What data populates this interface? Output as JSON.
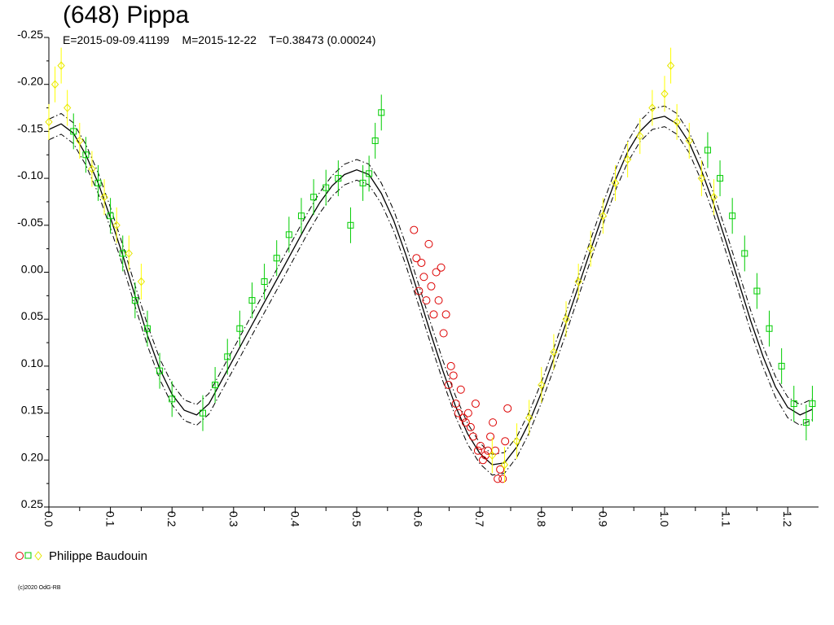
{
  "title": "(648) Pippa",
  "subtitle": "E=2015-09-09.41199    M=2015-12-22    T=0.38473 (0.00024)",
  "legend": {
    "observer": "Philippe Baudouin"
  },
  "copyright": "(c)2020 OdG-RB",
  "colors": {
    "red": "#dd0000",
    "green": "#00cc00",
    "yellow": "#ffff00",
    "axis": "#000000"
  },
  "chart_data": {
    "type": "scatter",
    "title": "(648) Pippa",
    "xlim": [
      0.0,
      1.25
    ],
    "ylim": [
      -0.25,
      0.25
    ],
    "y_inverted": true,
    "grid": false,
    "x_ticks": [
      "0.0",
      "0.1",
      "0.2",
      "0.3",
      "0.4",
      "0.5",
      "0.6",
      "0.7",
      "0.8",
      "0.9",
      "1.0",
      "1.1",
      "1.2"
    ],
    "y_ticks": [
      "-0.25",
      "-0.20",
      "-0.15",
      "-0.10",
      "-0.05",
      "0.00",
      "0.05",
      "0.10",
      "0.15",
      "0.20",
      "0.25"
    ],
    "fit_curve": {
      "x": [
        0.0,
        0.02,
        0.04,
        0.06,
        0.08,
        0.1,
        0.12,
        0.14,
        0.16,
        0.18,
        0.2,
        0.22,
        0.24,
        0.26,
        0.28,
        0.3,
        0.32,
        0.34,
        0.36,
        0.38,
        0.4,
        0.42,
        0.44,
        0.46,
        0.48,
        0.5,
        0.52,
        0.54,
        0.56,
        0.58,
        0.6,
        0.62,
        0.64,
        0.66,
        0.68,
        0.7,
        0.72,
        0.74,
        0.76,
        0.78,
        0.8,
        0.82,
        0.84,
        0.86,
        0.88,
        0.9,
        0.92,
        0.94,
        0.96,
        0.98,
        1.0,
        1.02,
        1.04,
        1.06,
        1.08,
        1.1,
        1.12,
        1.14,
        1.16,
        1.18,
        1.2,
        1.22,
        1.24
      ],
      "y": [
        -0.152,
        -0.158,
        -0.148,
        -0.125,
        -0.095,
        -0.058,
        -0.018,
        0.025,
        0.067,
        0.103,
        0.13,
        0.147,
        0.152,
        0.14,
        0.116,
        0.092,
        0.068,
        0.044,
        0.02,
        -0.004,
        -0.028,
        -0.052,
        -0.074,
        -0.092,
        -0.104,
        -0.109,
        -0.104,
        -0.084,
        -0.055,
        -0.018,
        0.023,
        0.065,
        0.105,
        0.142,
        0.172,
        0.193,
        0.205,
        0.203,
        0.186,
        0.16,
        0.128,
        0.092,
        0.054,
        0.015,
        -0.024,
        -0.062,
        -0.098,
        -0.128,
        -0.15,
        -0.163,
        -0.166,
        -0.158,
        -0.138,
        -0.108,
        -0.072,
        -0.032,
        0.01,
        0.052,
        0.09,
        0.122,
        0.144,
        0.152,
        0.146
      ],
      "band": 0.011
    },
    "series": [
      {
        "name": "Philippe Baudouin",
        "marker": "circle",
        "color": "red",
        "x": [
          0.593,
          0.597,
          0.601,
          0.605,
          0.609,
          0.613,
          0.617,
          0.621,
          0.625,
          0.629,
          0.633,
          0.637,
          0.641,
          0.645,
          0.649,
          0.653,
          0.657,
          0.661,
          0.665,
          0.669,
          0.673,
          0.677,
          0.681,
          0.685,
          0.689,
          0.693,
          0.697,
          0.701,
          0.705,
          0.709,
          0.713,
          0.717,
          0.721,
          0.725,
          0.729,
          0.733,
          0.737,
          0.741,
          0.745
        ],
        "y": [
          -0.045,
          -0.015,
          0.02,
          -0.01,
          0.005,
          0.03,
          -0.03,
          0.015,
          0.045,
          0.0,
          0.03,
          -0.005,
          0.065,
          0.045,
          0.12,
          0.1,
          0.11,
          0.14,
          0.15,
          0.125,
          0.155,
          0.16,
          0.15,
          0.165,
          0.175,
          0.14,
          0.19,
          0.185,
          0.2,
          0.195,
          0.19,
          0.175,
          0.16,
          0.19,
          0.22,
          0.21,
          0.22,
          0.18,
          0.145
        ]
      },
      {
        "name": "Philippe Baudouin",
        "marker": "square",
        "color": "green",
        "x": [
          0.04,
          0.06,
          0.08,
          0.1,
          0.12,
          0.14,
          0.16,
          0.18,
          0.2,
          0.25,
          0.27,
          0.29,
          0.31,
          0.33,
          0.35,
          0.37,
          0.39,
          0.41,
          0.43,
          0.45,
          0.47,
          0.49,
          0.51,
          0.52,
          0.53,
          0.54,
          1.07,
          1.09,
          1.11,
          1.13,
          1.15,
          1.17,
          1.19,
          1.21,
          1.23,
          1.24
        ],
        "y": [
          -0.15,
          -0.125,
          -0.095,
          -0.06,
          -0.02,
          0.03,
          0.06,
          0.105,
          0.135,
          0.15,
          0.12,
          0.09,
          0.06,
          0.03,
          0.01,
          -0.015,
          -0.04,
          -0.06,
          -0.08,
          -0.09,
          -0.1,
          -0.05,
          -0.095,
          -0.105,
          -0.14,
          -0.17,
          -0.13,
          -0.1,
          -0.06,
          -0.02,
          0.02,
          0.06,
          0.1,
          0.14,
          0.16,
          0.14
        ]
      },
      {
        "name": "Philippe Baudouin",
        "marker": "diamond",
        "color": "yellow",
        "x": [
          0.0,
          0.01,
          0.02,
          0.03,
          0.05,
          0.07,
          0.09,
          0.11,
          0.13,
          0.15,
          0.72,
          0.74,
          0.76,
          0.78,
          0.8,
          0.82,
          0.84,
          0.86,
          0.88,
          0.9,
          0.92,
          0.94,
          0.96,
          0.98,
          1.0,
          1.01,
          1.02,
          1.04,
          1.06,
          1.08
        ],
        "y": [
          -0.16,
          -0.2,
          -0.22,
          -0.175,
          -0.14,
          -0.11,
          -0.08,
          -0.05,
          -0.02,
          0.01,
          0.195,
          0.205,
          0.18,
          0.155,
          0.12,
          0.085,
          0.05,
          0.01,
          -0.025,
          -0.06,
          -0.095,
          -0.12,
          -0.145,
          -0.175,
          -0.19,
          -0.22,
          -0.16,
          -0.14,
          -0.1,
          -0.08
        ]
      }
    ]
  }
}
